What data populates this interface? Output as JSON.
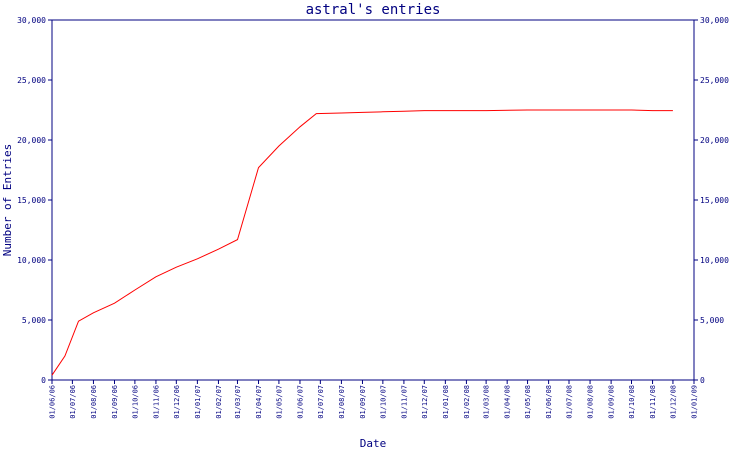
{
  "chart_data": {
    "type": "line",
    "title": "astral's entries",
    "xlabel": "Date",
    "ylabel": "Number of Entries",
    "ylim": [
      0,
      30000
    ],
    "y_ticks": [
      0,
      5000,
      10000,
      15000,
      20000,
      25000,
      30000
    ],
    "y_tick_labels": [
      "0",
      "5,000",
      "10,000",
      "15,000",
      "20,000",
      "25,000",
      "30,000"
    ],
    "x_tick_labels": [
      "01/06/06",
      "01/07/06",
      "01/08/06",
      "01/09/06",
      "01/10/06",
      "01/11/06",
      "01/12/06",
      "01/01/07",
      "01/02/07",
      "01/03/07",
      "01/04/07",
      "01/05/07",
      "01/06/07",
      "01/07/07",
      "01/08/07",
      "01/09/07",
      "01/10/07",
      "01/11/07",
      "01/12/07",
      "01/01/08",
      "01/02/08",
      "01/03/08",
      "01/04/08",
      "01/05/08",
      "01/06/08",
      "01/07/08",
      "01/08/08",
      "01/09/08",
      "01/10/08",
      "01/11/08",
      "01/12/08",
      "01/01/09"
    ],
    "grid": false,
    "colors": {
      "line": "#ff0000",
      "axes": "#000080",
      "text": "#000080"
    },
    "series": [
      {
        "x": [
          "2006-06-01",
          "2006-06-20",
          "2006-07-10",
          "2006-08-01",
          "2006-09-01",
          "2006-10-01",
          "2006-11-01",
          "2006-12-01",
          "2007-01-01",
          "2007-02-01",
          "2007-03-01",
          "2007-04-01",
          "2007-05-01",
          "2007-06-01",
          "2007-06-25",
          "2007-08-01",
          "2007-09-01",
          "2007-10-01",
          "2007-11-01",
          "2007-12-01",
          "2008-01-01",
          "2008-03-01",
          "2008-05-01",
          "2008-07-01",
          "2008-09-01",
          "2008-10-01",
          "2008-11-01",
          "2008-12-01"
        ],
        "y": [
          400,
          2000,
          4900,
          5600,
          6400,
          7500,
          8600,
          9400,
          10100,
          10900,
          11700,
          17700,
          19500,
          21100,
          22200,
          22250,
          22300,
          22350,
          22400,
          22450,
          22450,
          22450,
          22500,
          22500,
          22500,
          22500,
          22450,
          22450
        ]
      }
    ]
  }
}
